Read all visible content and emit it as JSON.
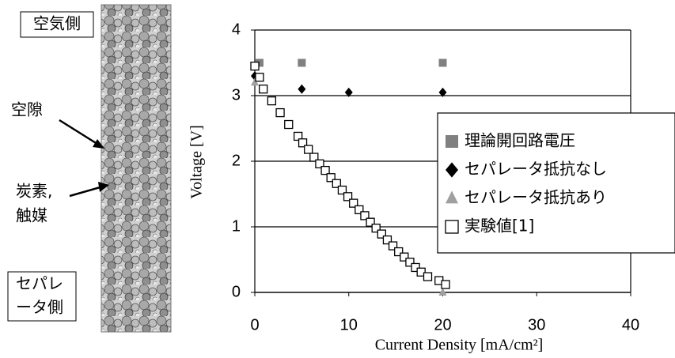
{
  "chart_data": {
    "type": "scatter",
    "xlabel": "Current Density [mA/cm²]",
    "ylabel": "Voltage [V]",
    "xlim": [
      0,
      40
    ],
    "xticks": [
      0,
      10,
      20,
      30,
      40
    ],
    "ylim": [
      0,
      4
    ],
    "yticks": [
      0,
      1,
      2,
      3,
      4
    ],
    "grid": true,
    "legend": "right",
    "annotations": [
      "空気側",
      "空隙",
      "炭素,",
      "触媒",
      "セパレ",
      "ータ側"
    ],
    "series": [
      {
        "name": "理論開回路電圧",
        "color": "#808080",
        "marker": "square",
        "x": [
          0.5,
          5,
          20
        ],
        "values": [
          3.5,
          3.5,
          3.5
        ]
      },
      {
        "name": "セパレータ抵抗なし",
        "color": "#000000",
        "marker": "diamond",
        "x": [
          0,
          5,
          10,
          20
        ],
        "values": [
          3.3,
          3.1,
          3.05,
          3.05
        ]
      },
      {
        "name": "セパレータ抵抗あり",
        "color": "#a0a0a0",
        "marker": "triangle",
        "x": [
          0,
          20
        ],
        "values": [
          3.2,
          0
        ]
      },
      {
        "name": "実験値[1]",
        "color": "#ffffff",
        "marker": "open-square",
        "x": [
          0,
          0.5,
          0.9,
          1.8,
          2.7,
          3.6,
          4.6,
          5.1,
          5.7,
          6.3,
          6.9,
          7.5,
          8.1,
          8.7,
          9.3,
          9.9,
          10.5,
          11.1,
          11.7,
          12.3,
          12.9,
          13.5,
          14.1,
          14.7,
          15.3,
          15.9,
          16.5,
          17.1,
          17.7,
          18.4,
          19.6,
          20.3
        ],
        "values": [
          3.45,
          3.28,
          3.1,
          2.92,
          2.74,
          2.56,
          2.38,
          2.28,
          2.18,
          2.06,
          1.96,
          1.86,
          1.75,
          1.66,
          1.56,
          1.46,
          1.36,
          1.26,
          1.17,
          1.07,
          0.98,
          0.89,
          0.8,
          0.71,
          0.62,
          0.54,
          0.46,
          0.38,
          0.31,
          0.24,
          0.18,
          0.12
        ]
      }
    ]
  }
}
